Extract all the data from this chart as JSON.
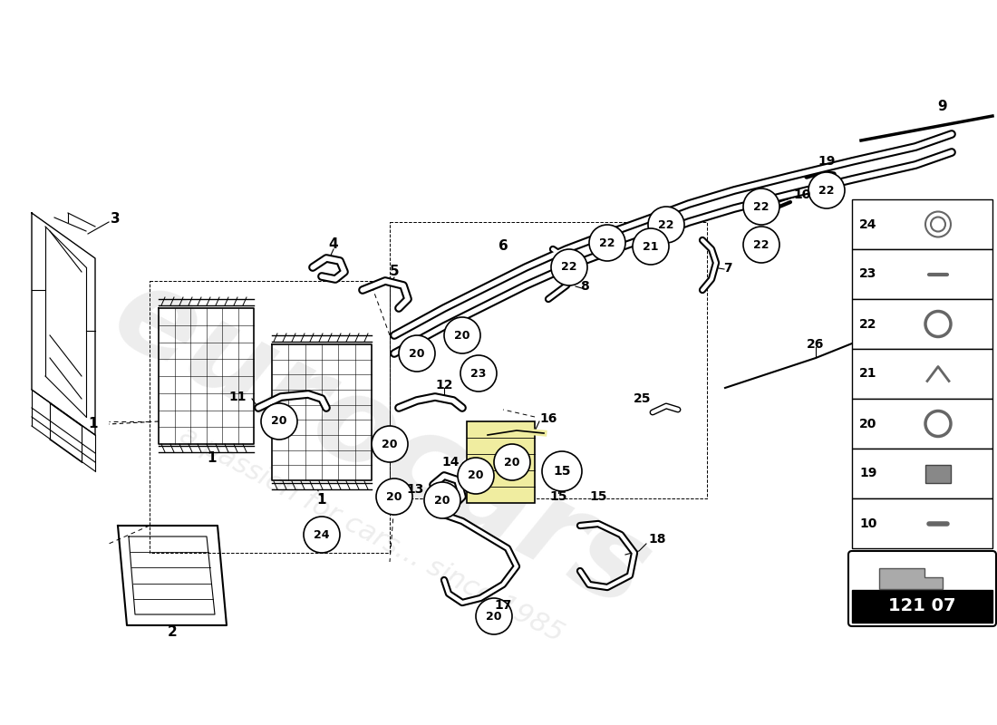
{
  "background_color": "#ffffff",
  "part_number": "121 07",
  "legend_items": [
    "24",
    "23",
    "22",
    "21",
    "20",
    "19",
    "10"
  ],
  "circle_labels_20": [
    [
      0.295,
      0.595
    ],
    [
      0.41,
      0.555
    ],
    [
      0.465,
      0.535
    ],
    [
      0.515,
      0.555
    ],
    [
      0.43,
      0.63
    ],
    [
      0.595,
      0.51
    ],
    [
      0.635,
      0.545
    ],
    [
      0.67,
      0.63
    ],
    [
      0.555,
      0.685
    ]
  ],
  "circle_labels_22": [
    [
      0.605,
      0.78
    ],
    [
      0.655,
      0.74
    ],
    [
      0.715,
      0.795
    ],
    [
      0.79,
      0.815
    ],
    [
      0.84,
      0.765
    ],
    [
      0.705,
      0.7
    ]
  ],
  "circle_labels_21": [
    [
      0.685,
      0.735
    ]
  ],
  "circle_labels_23": [
    [
      0.515,
      0.595
    ]
  ]
}
